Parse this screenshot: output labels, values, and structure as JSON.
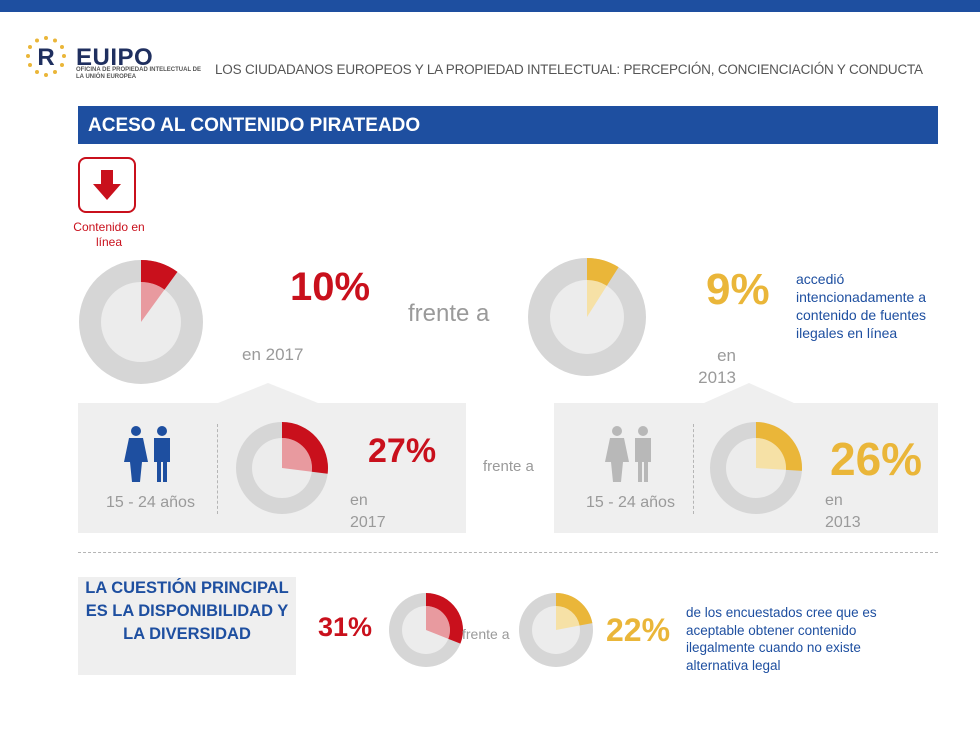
{
  "header": {
    "brand": "EUIPO",
    "brand_subtitle": "OFICINA DE PROPIEDAD INTELECTUAL DE LA UNIÓN EUROPEA",
    "document_title": "LOS CIUDADANOS EUROPEOS Y LA PROPIEDAD INTELECTUAL: PERCEPCIÓN, CONCIENCIACIÓN Y CONDUCTA"
  },
  "section": {
    "title": "ACESO AL CONTENIDO PIRATEADO",
    "icon": "download-arrow-icon",
    "icon_label": "Contenido en línea"
  },
  "overall": {
    "value_2017": "10%",
    "label_2017": "en 2017",
    "fraction_2017": 0.1,
    "versus": "frente a",
    "value_2013": "9%",
    "label_2013": "en 2013",
    "fraction_2013": 0.09,
    "description": "accedió intencionadamente a contenido de fuentes ilegales en línea"
  },
  "youth": {
    "age_group_2017": "15 - 24 años",
    "value_2017": "27%",
    "label_2017": "en 2017",
    "fraction_2017": 0.27,
    "versus": "frente a",
    "age_group_2013": "15 - 24 años",
    "value_2013": "26%",
    "label_2013": "en 2013",
    "fraction_2013": 0.26,
    "icon": "people-icon"
  },
  "key_issue": {
    "text": "LA CUESTIÓN PRINCIPAL ES LA DISPONIBILIDAD Y LA DIVERSIDAD",
    "value_2017": "31%",
    "fraction_2017": 0.31,
    "versus": "frente a",
    "value_2013": "22%",
    "fraction_2013": 0.22,
    "description": "de los encuestados cree que es aceptable obtener contenido ilegalmente cuando no existe alternativa legal"
  },
  "colors": {
    "brand_blue": "#1e4fa0",
    "red": "#c9101c",
    "red_light": "#e89a9f",
    "yellow": "#eab639",
    "yellow_light": "#f6e1a6",
    "ring_grey": "#d6d6d6",
    "panel_grey": "#efefef"
  }
}
